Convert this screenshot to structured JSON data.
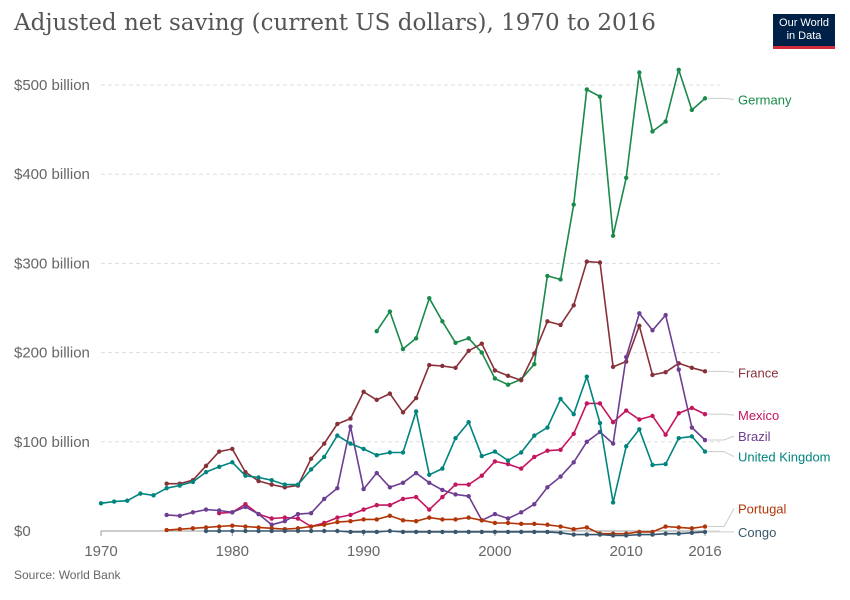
{
  "title": "Adjusted net saving (current US dollars), 1970 to 2016",
  "logo": {
    "line1": "Our World",
    "line2": "in Data"
  },
  "source": "Source: World Bank",
  "chart_data": {
    "type": "line",
    "xlim": [
      1970,
      2016
    ],
    "ylim": [
      0,
      500
    ],
    "y_unit": "billion US dollars",
    "x_ticks": [
      "1970",
      "1980",
      "1990",
      "2000",
      "2010",
      "2016"
    ],
    "y_ticks": [
      {
        "value": 0,
        "label": "$0"
      },
      {
        "value": 100,
        "label": "$100 billion"
      },
      {
        "value": 200,
        "label": "$200 billion"
      },
      {
        "value": 300,
        "label": "$300 billion"
      },
      {
        "value": 400,
        "label": "$400 billion"
      },
      {
        "value": 500,
        "label": "$500 billion"
      }
    ],
    "grid": "horizontal-dashed",
    "legend": "right-end-labels",
    "series": [
      {
        "name": "Germany",
        "color": "#1a8a4a",
        "points": [
          [
            1991,
            224
          ],
          [
            1992,
            246
          ],
          [
            1993,
            204
          ],
          [
            1994,
            216
          ],
          [
            1995,
            261
          ],
          [
            1996,
            235
          ],
          [
            1997,
            211
          ],
          [
            1998,
            216
          ],
          [
            1999,
            200
          ],
          [
            2000,
            171
          ],
          [
            2001,
            164
          ],
          [
            2002,
            170
          ],
          [
            2003,
            187
          ],
          [
            2004,
            286
          ],
          [
            2005,
            282
          ],
          [
            2006,
            366
          ],
          [
            2007,
            495
          ],
          [
            2008,
            487
          ],
          [
            2009,
            331
          ],
          [
            2010,
            396
          ],
          [
            2011,
            514
          ],
          [
            2012,
            448
          ],
          [
            2013,
            459
          ],
          [
            2014,
            517
          ],
          [
            2015,
            472
          ],
          [
            2016,
            485
          ]
        ]
      },
      {
        "name": "France",
        "color": "#883039",
        "points": [
          [
            1975,
            53
          ],
          [
            1976,
            53
          ],
          [
            1977,
            57
          ],
          [
            1978,
            73
          ],
          [
            1979,
            89
          ],
          [
            1980,
            92
          ],
          [
            1981,
            66
          ],
          [
            1982,
            56
          ],
          [
            1983,
            52
          ],
          [
            1984,
            49
          ],
          [
            1985,
            51
          ],
          [
            1986,
            81
          ],
          [
            1987,
            98
          ],
          [
            1988,
            120
          ],
          [
            1989,
            126
          ],
          [
            1990,
            156
          ],
          [
            1991,
            147
          ],
          [
            1992,
            154
          ],
          [
            1993,
            133
          ],
          [
            1994,
            149
          ],
          [
            1995,
            186
          ],
          [
            1996,
            185
          ],
          [
            1997,
            183
          ],
          [
            1998,
            202
          ],
          [
            1999,
            210
          ],
          [
            2000,
            180
          ],
          [
            2001,
            174
          ],
          [
            2002,
            169
          ],
          [
            2003,
            199
          ],
          [
            2004,
            235
          ],
          [
            2005,
            231
          ],
          [
            2006,
            253
          ],
          [
            2007,
            302
          ],
          [
            2008,
            301
          ],
          [
            2009,
            184
          ],
          [
            2010,
            190
          ],
          [
            2011,
            230
          ],
          [
            2012,
            175
          ],
          [
            2013,
            178
          ],
          [
            2014,
            188
          ],
          [
            2015,
            183
          ],
          [
            2016,
            179
          ]
        ]
      },
      {
        "name": "Mexico",
        "color": "#c4155f",
        "points": [
          [
            1979,
            20
          ],
          [
            1980,
            21
          ],
          [
            1981,
            30
          ],
          [
            1982,
            19
          ],
          [
            1983,
            14
          ],
          [
            1984,
            15
          ],
          [
            1985,
            14
          ],
          [
            1986,
            5
          ],
          [
            1987,
            9
          ],
          [
            1988,
            15
          ],
          [
            1989,
            18
          ],
          [
            1990,
            24
          ],
          [
            1991,
            29
          ],
          [
            1992,
            29
          ],
          [
            1993,
            36
          ],
          [
            1994,
            38
          ],
          [
            1995,
            24
          ],
          [
            1996,
            38
          ],
          [
            1997,
            52
          ],
          [
            1998,
            52
          ],
          [
            1999,
            62
          ],
          [
            2000,
            78
          ],
          [
            2001,
            75
          ],
          [
            2002,
            70
          ],
          [
            2003,
            83
          ],
          [
            2004,
            90
          ],
          [
            2005,
            91
          ],
          [
            2006,
            109
          ],
          [
            2007,
            143
          ],
          [
            2008,
            143
          ],
          [
            2009,
            122
          ],
          [
            2010,
            135
          ],
          [
            2011,
            125
          ],
          [
            2012,
            129
          ],
          [
            2013,
            108
          ],
          [
            2014,
            132
          ],
          [
            2015,
            138
          ],
          [
            2016,
            131
          ]
        ]
      },
      {
        "name": "Brazil",
        "color": "#6d3e91",
        "points": [
          [
            1975,
            18
          ],
          [
            1976,
            17
          ],
          [
            1977,
            21
          ],
          [
            1978,
            24
          ],
          [
            1979,
            23
          ],
          [
            1980,
            21
          ],
          [
            1981,
            27
          ],
          [
            1982,
            19
          ],
          [
            1983,
            7
          ],
          [
            1984,
            11
          ],
          [
            1985,
            19
          ],
          [
            1986,
            20
          ],
          [
            1987,
            36
          ],
          [
            1988,
            48
          ],
          [
            1989,
            117
          ],
          [
            1990,
            47
          ],
          [
            1991,
            65
          ],
          [
            1992,
            49
          ],
          [
            1993,
            54
          ],
          [
            1994,
            65
          ],
          [
            1995,
            54
          ],
          [
            1996,
            46
          ],
          [
            1997,
            41
          ],
          [
            1998,
            39
          ],
          [
            1999,
            12
          ],
          [
            2000,
            19
          ],
          [
            2001,
            14
          ],
          [
            2002,
            21
          ],
          [
            2003,
            30
          ],
          [
            2004,
            49
          ],
          [
            2005,
            61
          ],
          [
            2006,
            77
          ],
          [
            2007,
            100
          ],
          [
            2008,
            111
          ],
          [
            2009,
            98
          ],
          [
            2010,
            195
          ],
          [
            2011,
            244
          ],
          [
            2012,
            225
          ],
          [
            2013,
            242
          ],
          [
            2014,
            181
          ],
          [
            2015,
            116
          ],
          [
            2016,
            102
          ]
        ]
      },
      {
        "name": "United Kingdom",
        "color": "#00847e",
        "points": [
          [
            1970,
            31
          ],
          [
            1971,
            33
          ],
          [
            1972,
            34
          ],
          [
            1973,
            42
          ],
          [
            1974,
            40
          ],
          [
            1975,
            48
          ],
          [
            1976,
            51
          ],
          [
            1977,
            55
          ],
          [
            1978,
            66
          ],
          [
            1979,
            72
          ],
          [
            1980,
            77
          ],
          [
            1981,
            62
          ],
          [
            1982,
            60
          ],
          [
            1983,
            57
          ],
          [
            1984,
            52
          ],
          [
            1985,
            52
          ],
          [
            1986,
            69
          ],
          [
            1987,
            83
          ],
          [
            1988,
            107
          ],
          [
            1989,
            98
          ],
          [
            1990,
            92
          ],
          [
            1991,
            85
          ],
          [
            1992,
            88
          ],
          [
            1993,
            88
          ],
          [
            1994,
            134
          ],
          [
            1995,
            63
          ],
          [
            1996,
            70
          ],
          [
            1997,
            104
          ],
          [
            1998,
            122
          ],
          [
            1999,
            84
          ],
          [
            2000,
            89
          ],
          [
            2001,
            79
          ],
          [
            2002,
            88
          ],
          [
            2003,
            107
          ],
          [
            2004,
            116
          ],
          [
            2005,
            148
          ],
          [
            2006,
            131
          ],
          [
            2007,
            173
          ],
          [
            2008,
            121
          ],
          [
            2009,
            32
          ],
          [
            2010,
            95
          ],
          [
            2011,
            114
          ],
          [
            2012,
            74
          ],
          [
            2013,
            75
          ],
          [
            2014,
            104
          ],
          [
            2015,
            106
          ],
          [
            2016,
            89
          ]
        ]
      },
      {
        "name": "Portugal",
        "color": "#b13507",
        "points": [
          [
            1975,
            1
          ],
          [
            1976,
            2
          ],
          [
            1977,
            3
          ],
          [
            1978,
            4
          ],
          [
            1979,
            5
          ],
          [
            1980,
            6
          ],
          [
            1981,
            5
          ],
          [
            1982,
            4
          ],
          [
            1983,
            3
          ],
          [
            1984,
            2
          ],
          [
            1985,
            3
          ],
          [
            1986,
            5
          ],
          [
            1987,
            7
          ],
          [
            1988,
            10
          ],
          [
            1989,
            11
          ],
          [
            1990,
            13
          ],
          [
            1991,
            13
          ],
          [
            1992,
            17
          ],
          [
            1993,
            12
          ],
          [
            1994,
            11
          ],
          [
            1995,
            15
          ],
          [
            1996,
            13
          ],
          [
            1997,
            13
          ],
          [
            1998,
            15
          ],
          [
            1999,
            12
          ],
          [
            2000,
            9
          ],
          [
            2001,
            9
          ],
          [
            2002,
            8
          ],
          [
            2003,
            8
          ],
          [
            2004,
            7
          ],
          [
            2005,
            5
          ],
          [
            2006,
            2
          ],
          [
            2007,
            4
          ],
          [
            2008,
            -3
          ],
          [
            2009,
            -3
          ],
          [
            2010,
            -3
          ],
          [
            2011,
            -1
          ],
          [
            2012,
            -1
          ],
          [
            2013,
            5
          ],
          [
            2014,
            4
          ],
          [
            2015,
            3
          ],
          [
            2016,
            5
          ]
        ]
      },
      {
        "name": "Congo",
        "color": "#38566e",
        "points": [
          [
            1978,
            0
          ],
          [
            1979,
            0
          ],
          [
            1980,
            0
          ],
          [
            1981,
            0
          ],
          [
            1982,
            0
          ],
          [
            1983,
            0
          ],
          [
            1984,
            0
          ],
          [
            1985,
            0
          ],
          [
            1986,
            0
          ],
          [
            1987,
            0
          ],
          [
            1988,
            0
          ],
          [
            1989,
            -1
          ],
          [
            1990,
            -1
          ],
          [
            1991,
            -1
          ],
          [
            1992,
            0
          ],
          [
            1993,
            -1
          ],
          [
            1994,
            -1
          ],
          [
            1995,
            -1
          ],
          [
            1996,
            -1
          ],
          [
            1997,
            -1
          ],
          [
            1998,
            -1
          ],
          [
            1999,
            -1
          ],
          [
            2000,
            -1
          ],
          [
            2001,
            -1
          ],
          [
            2002,
            -1
          ],
          [
            2003,
            -1
          ],
          [
            2004,
            -1
          ],
          [
            2005,
            -2
          ],
          [
            2006,
            -4
          ],
          [
            2007,
            -4
          ],
          [
            2008,
            -4
          ],
          [
            2009,
            -5
          ],
          [
            2010,
            -5
          ],
          [
            2011,
            -4
          ],
          [
            2012,
            -4
          ],
          [
            2013,
            -3
          ],
          [
            2014,
            -3
          ],
          [
            2015,
            -2
          ],
          [
            2016,
            -1
          ]
        ]
      }
    ]
  }
}
